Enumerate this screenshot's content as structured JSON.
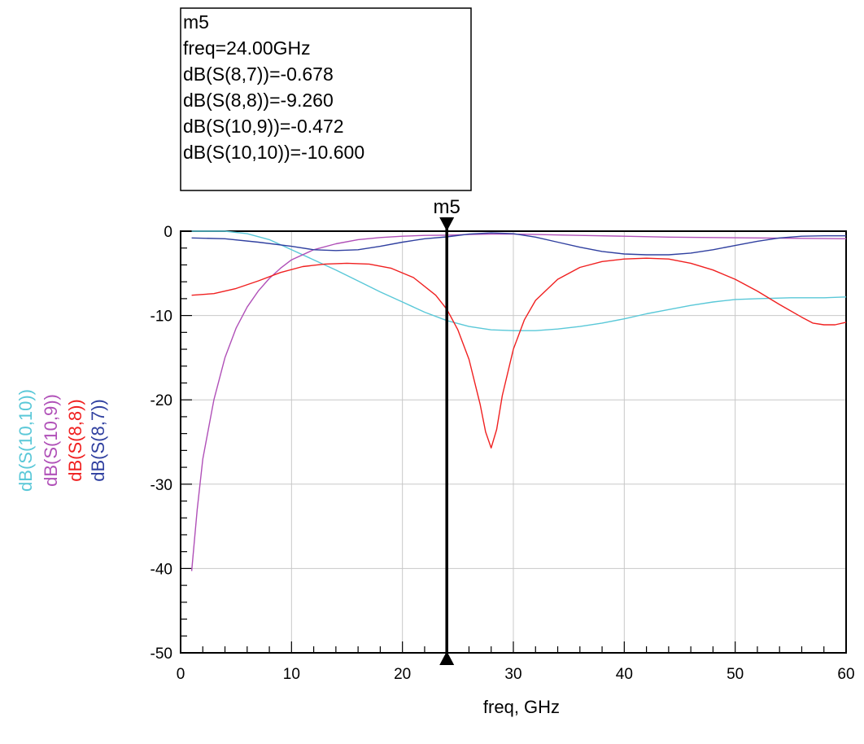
{
  "chart_data": {
    "type": "line",
    "xlabel": "freq, GHz",
    "xlim": [
      0,
      60
    ],
    "ylim": [
      -50,
      0
    ],
    "x_ticks": [
      0,
      10,
      20,
      30,
      40,
      50,
      60
    ],
    "y_ticks": [
      0,
      -10,
      -20,
      -30,
      -40,
      -50
    ],
    "grid": true,
    "series": [
      {
        "name": "dB(S(10,10))",
        "color": "#5ac8d8",
        "points": [
          [
            1,
            0
          ],
          [
            4,
            0
          ],
          [
            6,
            -0.3
          ],
          [
            8,
            -1.0
          ],
          [
            10,
            -2.2
          ],
          [
            12,
            -3.4
          ],
          [
            14,
            -4.6
          ],
          [
            16,
            -5.9
          ],
          [
            18,
            -7.2
          ],
          [
            20,
            -8.4
          ],
          [
            22,
            -9.6
          ],
          [
            24,
            -10.6
          ],
          [
            26,
            -11.3
          ],
          [
            28,
            -11.7
          ],
          [
            30,
            -11.8
          ],
          [
            32,
            -11.8
          ],
          [
            34,
            -11.6
          ],
          [
            36,
            -11.3
          ],
          [
            38,
            -10.9
          ],
          [
            40,
            -10.4
          ],
          [
            42,
            -9.8
          ],
          [
            44,
            -9.3
          ],
          [
            46,
            -8.8
          ],
          [
            48,
            -8.4
          ],
          [
            50,
            -8.1
          ],
          [
            52,
            -8.0
          ],
          [
            55,
            -7.9
          ],
          [
            58,
            -7.9
          ],
          [
            60,
            -7.8
          ]
        ]
      },
      {
        "name": "dB(S(10,9))",
        "color": "#b050b8",
        "points": [
          [
            1,
            -40.3
          ],
          [
            1.5,
            -33
          ],
          [
            2,
            -27
          ],
          [
            3,
            -20
          ],
          [
            4,
            -15
          ],
          [
            5,
            -11.5
          ],
          [
            6,
            -9
          ],
          [
            7,
            -7.1
          ],
          [
            8,
            -5.6
          ],
          [
            9,
            -4.4
          ],
          [
            10,
            -3.4
          ],
          [
            12,
            -2.2
          ],
          [
            14,
            -1.5
          ],
          [
            16,
            -1.0
          ],
          [
            18,
            -0.75
          ],
          [
            20,
            -0.6
          ],
          [
            22,
            -0.5
          ],
          [
            24,
            -0.47
          ],
          [
            26,
            -0.4
          ],
          [
            28,
            -0.35
          ],
          [
            30,
            -0.35
          ],
          [
            32,
            -0.4
          ],
          [
            36,
            -0.5
          ],
          [
            40,
            -0.6
          ],
          [
            44,
            -0.7
          ],
          [
            48,
            -0.75
          ],
          [
            52,
            -0.8
          ],
          [
            56,
            -0.85
          ],
          [
            60,
            -0.9
          ]
        ]
      },
      {
        "name": "dB(S(8,8))",
        "color": "#f02020",
        "points": [
          [
            1,
            -7.6
          ],
          [
            3,
            -7.4
          ],
          [
            5,
            -6.8
          ],
          [
            7,
            -5.9
          ],
          [
            9,
            -4.9
          ],
          [
            11,
            -4.2
          ],
          [
            13,
            -3.9
          ],
          [
            15,
            -3.8
          ],
          [
            17,
            -3.9
          ],
          [
            19,
            -4.4
          ],
          [
            21,
            -5.5
          ],
          [
            23,
            -7.6
          ],
          [
            24,
            -9.26
          ],
          [
            25,
            -11.7
          ],
          [
            26,
            -15.2
          ],
          [
            27,
            -20.5
          ],
          [
            27.5,
            -23.8
          ],
          [
            28,
            -25.7
          ],
          [
            28.5,
            -23.5
          ],
          [
            29,
            -19.5
          ],
          [
            30,
            -14
          ],
          [
            31,
            -10.5
          ],
          [
            32,
            -8.2
          ],
          [
            34,
            -5.7
          ],
          [
            36,
            -4.3
          ],
          [
            38,
            -3.6
          ],
          [
            40,
            -3.3
          ],
          [
            42,
            -3.2
          ],
          [
            44,
            -3.3
          ],
          [
            46,
            -3.8
          ],
          [
            48,
            -4.6
          ],
          [
            50,
            -5.7
          ],
          [
            52,
            -7.1
          ],
          [
            54,
            -8.7
          ],
          [
            56,
            -10.2
          ],
          [
            57,
            -10.9
          ],
          [
            58,
            -11.1
          ],
          [
            59,
            -11.1
          ],
          [
            60,
            -10.8
          ]
        ]
      },
      {
        "name": "dB(S(8,7))",
        "color": "#3040a0",
        "points": [
          [
            1,
            -0.8
          ],
          [
            4,
            -0.9
          ],
          [
            7,
            -1.3
          ],
          [
            10,
            -1.8
          ],
          [
            12,
            -2.2
          ],
          [
            14,
            -2.3
          ],
          [
            16,
            -2.2
          ],
          [
            18,
            -1.8
          ],
          [
            20,
            -1.3
          ],
          [
            22,
            -0.9
          ],
          [
            24,
            -0.678
          ],
          [
            26,
            -0.35
          ],
          [
            28,
            -0.2
          ],
          [
            30,
            -0.3
          ],
          [
            32,
            -0.7
          ],
          [
            34,
            -1.3
          ],
          [
            36,
            -1.9
          ],
          [
            38,
            -2.4
          ],
          [
            40,
            -2.7
          ],
          [
            42,
            -2.8
          ],
          [
            44,
            -2.8
          ],
          [
            46,
            -2.6
          ],
          [
            48,
            -2.2
          ],
          [
            50,
            -1.7
          ],
          [
            52,
            -1.2
          ],
          [
            54,
            -0.8
          ],
          [
            56,
            -0.6
          ],
          [
            58,
            -0.55
          ],
          [
            60,
            -0.55
          ]
        ]
      }
    ],
    "marker": {
      "name": "m5",
      "x": 24,
      "lines": [
        "m5",
        "freq=24.00GHz",
        "dB(S(8,7))=-0.678",
        "dB(S(8,8))=-9.260",
        "dB(S(10,9))=-0.472",
        "dB(S(10,10))=-10.600"
      ]
    }
  }
}
